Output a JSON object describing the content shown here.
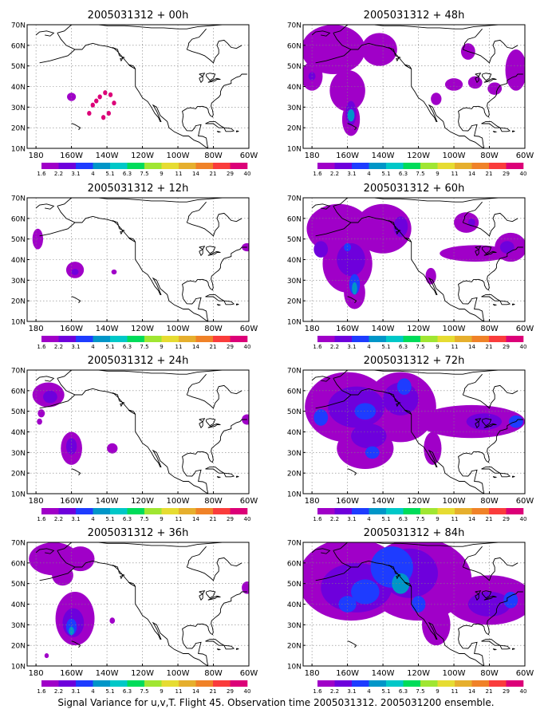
{
  "caption": "Signal Variance for u,v,T. Flight 45. Observation time 2005031312. 2005031200 ensemble.",
  "colors": {
    "colorbar": [
      "#a000c8",
      "#6e00dc",
      "#1e3cff",
      "#0096c8",
      "#00c8c8",
      "#00dc5a",
      "#a0e632",
      "#e6dc32",
      "#e6af2d",
      "#f08228",
      "#fa3c3c",
      "#dc0078"
    ],
    "background": "#ffffff",
    "coastline": "#000000",
    "grid": "#808080"
  },
  "chart_data": [
    {
      "type": "heatmap",
      "title": "2005031312 + 00h",
      "xlabel": "",
      "ylabel": "",
      "x_ticks": [
        "180",
        "160W",
        "140W",
        "120W",
        "100W",
        "80W",
        "60W"
      ],
      "y_ticks": [
        "10N",
        "20N",
        "30N",
        "40N",
        "50N",
        "60N",
        "70N"
      ],
      "x_range": [
        -185,
        -60
      ],
      "y_range": [
        10,
        70
      ],
      "grid": true,
      "colorbar": {
        "labels": [
          "1.6",
          "2.2",
          "3.1",
          "4",
          "5.1",
          "6.3",
          "7.5",
          "9",
          "11",
          "14",
          "21",
          "29",
          "40"
        ]
      },
      "blobs": [
        {
          "lon": -146,
          "lat": 33,
          "rx": 1.2,
          "ry": 1.2,
          "level": 11
        },
        {
          "lon": -150,
          "lat": 27,
          "rx": 1.2,
          "ry": 1.2,
          "level": 11
        },
        {
          "lon": -148,
          "lat": 31,
          "rx": 1.2,
          "ry": 1.2,
          "level": 11
        },
        {
          "lon": -144,
          "lat": 35,
          "rx": 1.2,
          "ry": 1.2,
          "level": 11
        },
        {
          "lon": -141,
          "lat": 37,
          "rx": 1.2,
          "ry": 1.2,
          "level": 11
        },
        {
          "lon": -138,
          "lat": 36,
          "rx": 1.2,
          "ry": 1.2,
          "level": 11
        },
        {
          "lon": -136,
          "lat": 32,
          "rx": 1.2,
          "ry": 1.2,
          "level": 11
        },
        {
          "lon": -139,
          "lat": 27,
          "rx": 1.2,
          "ry": 1.2,
          "level": 11
        },
        {
          "lon": -142,
          "lat": 25,
          "rx": 1.2,
          "ry": 1.2,
          "level": 11
        },
        {
          "lon": -160,
          "lat": 35,
          "rx": 2.5,
          "ry": 2,
          "level": 0
        }
      ]
    },
    {
      "type": "heatmap",
      "title": "2005031312 + 12h",
      "xlabel": "",
      "ylabel": "",
      "x_ticks": [
        "180",
        "160W",
        "140W",
        "120W",
        "100W",
        "80W",
        "60W"
      ],
      "y_ticks": [
        "10N",
        "20N",
        "30N",
        "40N",
        "50N",
        "60N",
        "70N"
      ],
      "x_range": [
        -185,
        -60
      ],
      "y_range": [
        10,
        70
      ],
      "grid": true,
      "colorbar": {
        "labels": [
          "1.6",
          "2.2",
          "3.1",
          "4",
          "5.1",
          "6.3",
          "7.5",
          "9",
          "11",
          "14",
          "21",
          "29",
          "40"
        ]
      },
      "blobs": [
        {
          "lon": -179,
          "lat": 50,
          "rx": 3,
          "ry": 5,
          "level": 0
        },
        {
          "lon": -158,
          "lat": 35,
          "rx": 5,
          "ry": 4,
          "level": 0
        },
        {
          "lon": -158,
          "lat": 34,
          "rx": 2,
          "ry": 1.5,
          "level": 1
        },
        {
          "lon": -136,
          "lat": 34,
          "rx": 1.5,
          "ry": 1.2,
          "level": 0
        },
        {
          "lon": -61,
          "lat": 46,
          "rx": 3,
          "ry": 2,
          "level": 0
        }
      ]
    },
    {
      "type": "heatmap",
      "title": "2005031312 + 24h",
      "xlabel": "",
      "ylabel": "",
      "x_ticks": [
        "180",
        "160W",
        "140W",
        "120W",
        "100W",
        "80W",
        "60W"
      ],
      "y_ticks": [
        "10N",
        "20N",
        "30N",
        "40N",
        "50N",
        "60N",
        "70N"
      ],
      "x_range": [
        -185,
        -60
      ],
      "y_range": [
        10,
        70
      ],
      "grid": true,
      "colorbar": {
        "labels": [
          "1.6",
          "2.2",
          "3.1",
          "4",
          "5.1",
          "6.3",
          "7.5",
          "9",
          "11",
          "14",
          "21",
          "29",
          "40"
        ]
      },
      "blobs": [
        {
          "lon": -173,
          "lat": 58,
          "rx": 9,
          "ry": 6,
          "level": 0
        },
        {
          "lon": -172,
          "lat": 57,
          "rx": 4,
          "ry": 3,
          "level": 1
        },
        {
          "lon": -177,
          "lat": 49,
          "rx": 2,
          "ry": 2,
          "level": 0
        },
        {
          "lon": -178,
          "lat": 45,
          "rx": 1.5,
          "ry": 1.5,
          "level": 0
        },
        {
          "lon": -160,
          "lat": 32,
          "rx": 6,
          "ry": 8,
          "level": 0
        },
        {
          "lon": -160,
          "lat": 33,
          "rx": 3,
          "ry": 4,
          "level": 1
        },
        {
          "lon": -137,
          "lat": 32,
          "rx": 3,
          "ry": 2.5,
          "level": 0
        },
        {
          "lon": -61,
          "lat": 46,
          "rx": 3,
          "ry": 2.5,
          "level": 0
        }
      ]
    },
    {
      "type": "heatmap",
      "title": "2005031312 + 36h",
      "xlabel": "",
      "ylabel": "",
      "x_ticks": [
        "180",
        "160W",
        "140W",
        "120W",
        "100W",
        "80W",
        "60W"
      ],
      "y_ticks": [
        "10N",
        "20N",
        "30N",
        "40N",
        "50N",
        "60N",
        "70N"
      ],
      "x_range": [
        -185,
        -60
      ],
      "y_range": [
        10,
        70
      ],
      "grid": true,
      "colorbar": {
        "labels": [
          "1.6",
          "2.2",
          "3.1",
          "4",
          "5.1",
          "6.3",
          "7.5",
          "9",
          "11",
          "14",
          "21",
          "29",
          "40"
        ]
      },
      "blobs": [
        {
          "lon": -170,
          "lat": 62,
          "rx": 14,
          "ry": 8,
          "level": 0
        },
        {
          "lon": -155,
          "lat": 62,
          "rx": 8,
          "ry": 6,
          "level": 0
        },
        {
          "lon": -165,
          "lat": 54,
          "rx": 6,
          "ry": 5,
          "level": 0
        },
        {
          "lon": -158,
          "lat": 33,
          "rx": 11,
          "ry": 13,
          "level": 0
        },
        {
          "lon": -159,
          "lat": 31,
          "rx": 6,
          "ry": 7,
          "level": 1
        },
        {
          "lon": -160,
          "lat": 29,
          "rx": 3,
          "ry": 4,
          "level": 2
        },
        {
          "lon": -160,
          "lat": 27,
          "rx": 1.5,
          "ry": 2,
          "level": 3
        },
        {
          "lon": -174,
          "lat": 15,
          "rx": 1.2,
          "ry": 1.2,
          "level": 0
        },
        {
          "lon": -137,
          "lat": 32,
          "rx": 1.5,
          "ry": 1.5,
          "level": 0
        },
        {
          "lon": -61,
          "lat": 48,
          "rx": 3,
          "ry": 3,
          "level": 0
        }
      ]
    },
    {
      "type": "heatmap",
      "title": "2005031312 + 48h",
      "xlabel": "",
      "ylabel": "",
      "x_ticks": [
        "180",
        "160W",
        "140W",
        "120W",
        "100W",
        "80W",
        "60W"
      ],
      "y_ticks": [
        "10N",
        "20N",
        "30N",
        "40N",
        "50N",
        "60N",
        "70N"
      ],
      "x_range": [
        -185,
        -60
      ],
      "y_range": [
        10,
        70
      ],
      "grid": true,
      "colorbar": {
        "labels": [
          "1.6",
          "2.2",
          "3.1",
          "4",
          "5.1",
          "6.3",
          "7.5",
          "9",
          "11",
          "14",
          "21",
          "29",
          "40"
        ]
      },
      "blobs": [
        {
          "lon": -168,
          "lat": 58,
          "rx": 18,
          "ry": 12,
          "level": 0
        },
        {
          "lon": -142,
          "lat": 58,
          "rx": 10,
          "ry": 8,
          "level": 0
        },
        {
          "lon": -180,
          "lat": 45,
          "rx": 6,
          "ry": 7,
          "level": 0
        },
        {
          "lon": -160,
          "lat": 38,
          "rx": 10,
          "ry": 10,
          "level": 0
        },
        {
          "lon": -158,
          "lat": 24,
          "rx": 5,
          "ry": 8,
          "level": 0
        },
        {
          "lon": -158,
          "lat": 27,
          "rx": 3,
          "ry": 6,
          "level": 1
        },
        {
          "lon": -158,
          "lat": 26,
          "rx": 2,
          "ry": 3,
          "level": 3
        },
        {
          "lon": -180,
          "lat": 45,
          "rx": 2,
          "ry": 2,
          "level": 1
        },
        {
          "lon": -92,
          "lat": 57,
          "rx": 4,
          "ry": 4,
          "level": 0
        },
        {
          "lon": -100,
          "lat": 41,
          "rx": 5,
          "ry": 3,
          "level": 0
        },
        {
          "lon": -88,
          "lat": 42,
          "rx": 4,
          "ry": 3,
          "level": 0
        },
        {
          "lon": -77,
          "lat": 39,
          "rx": 4,
          "ry": 3,
          "level": 0
        },
        {
          "lon": -65,
          "lat": 48,
          "rx": 6,
          "ry": 10,
          "level": 0
        },
        {
          "lon": -110,
          "lat": 34,
          "rx": 3,
          "ry": 3,
          "level": 0
        }
      ]
    },
    {
      "type": "heatmap",
      "title": "2005031312 + 60h",
      "xlabel": "",
      "ylabel": "",
      "x_ticks": [
        "180",
        "160W",
        "140W",
        "120W",
        "100W",
        "80W",
        "60W"
      ],
      "y_ticks": [
        "10N",
        "20N",
        "30N",
        "40N",
        "50N",
        "60N",
        "70N"
      ],
      "x_range": [
        -185,
        -60
      ],
      "y_range": [
        10,
        70
      ],
      "grid": true,
      "colorbar": {
        "labels": [
          "1.6",
          "2.2",
          "3.1",
          "4",
          "5.1",
          "6.3",
          "7.5",
          "9",
          "11",
          "14",
          "21",
          "29",
          "40"
        ]
      },
      "blobs": [
        {
          "lon": -165,
          "lat": 55,
          "rx": 18,
          "ry": 12,
          "level": 0
        },
        {
          "lon": -140,
          "lat": 55,
          "rx": 16,
          "ry": 12,
          "level": 0
        },
        {
          "lon": -160,
          "lat": 38,
          "rx": 14,
          "ry": 14,
          "level": 0
        },
        {
          "lon": -156,
          "lat": 24,
          "rx": 6,
          "ry": 8,
          "level": 0
        },
        {
          "lon": -158,
          "lat": 40,
          "rx": 8,
          "ry": 8,
          "level": 1
        },
        {
          "lon": -156,
          "lat": 28,
          "rx": 3,
          "ry": 5,
          "level": 2
        },
        {
          "lon": -156,
          "lat": 26,
          "rx": 1.5,
          "ry": 3,
          "level": 3
        },
        {
          "lon": -175,
          "lat": 45,
          "rx": 4,
          "ry": 4,
          "level": 1
        },
        {
          "lon": -130,
          "lat": 56,
          "rx": 4,
          "ry": 5,
          "level": 1
        },
        {
          "lon": -160,
          "lat": 46,
          "rx": 2,
          "ry": 2,
          "level": 2
        },
        {
          "lon": -93,
          "lat": 58,
          "rx": 7,
          "ry": 5,
          "level": 0
        },
        {
          "lon": -90,
          "lat": 58,
          "rx": 2,
          "ry": 2,
          "level": 1
        },
        {
          "lon": -88,
          "lat": 43,
          "rx": 20,
          "ry": 4,
          "level": 0
        },
        {
          "lon": -68,
          "lat": 46,
          "rx": 9,
          "ry": 7,
          "level": 0
        },
        {
          "lon": -70,
          "lat": 46,
          "rx": 4,
          "ry": 3,
          "level": 1
        },
        {
          "lon": -113,
          "lat": 32,
          "rx": 3,
          "ry": 4,
          "level": 0
        }
      ]
    },
    {
      "type": "heatmap",
      "title": "2005031312 + 72h",
      "xlabel": "",
      "ylabel": "",
      "x_ticks": [
        "180",
        "160W",
        "140W",
        "120W",
        "100W",
        "80W",
        "60W"
      ],
      "y_ticks": [
        "10N",
        "20N",
        "30N",
        "40N",
        "50N",
        "60N",
        "70N"
      ],
      "x_range": [
        -185,
        -60
      ],
      "y_range": [
        10,
        70
      ],
      "grid": true,
      "colorbar": {
        "labels": [
          "1.6",
          "2.2",
          "3.1",
          "4",
          "5.1",
          "6.3",
          "7.5",
          "9",
          "11",
          "14",
          "21",
          "29",
          "40"
        ]
      },
      "blobs": [
        {
          "lon": -160,
          "lat": 52,
          "rx": 24,
          "ry": 17,
          "level": 0
        },
        {
          "lon": -130,
          "lat": 52,
          "rx": 20,
          "ry": 17,
          "level": 0
        },
        {
          "lon": -150,
          "lat": 32,
          "rx": 16,
          "ry": 10,
          "level": 0
        },
        {
          "lon": -90,
          "lat": 45,
          "rx": 30,
          "ry": 8,
          "level": 0
        },
        {
          "lon": -112,
          "lat": 32,
          "rx": 5,
          "ry": 8,
          "level": 0
        },
        {
          "lon": -155,
          "lat": 52,
          "rx": 16,
          "ry": 10,
          "level": 1
        },
        {
          "lon": -130,
          "lat": 56,
          "rx": 10,
          "ry": 8,
          "level": 1
        },
        {
          "lon": -148,
          "lat": 38,
          "rx": 10,
          "ry": 6,
          "level": 1
        },
        {
          "lon": -175,
          "lat": 47,
          "rx": 4,
          "ry": 4,
          "level": 2
        },
        {
          "lon": -150,
          "lat": 50,
          "rx": 6,
          "ry": 4,
          "level": 2
        },
        {
          "lon": -128,
          "lat": 62,
          "rx": 4,
          "ry": 4,
          "level": 2
        },
        {
          "lon": -146,
          "lat": 30,
          "rx": 4,
          "ry": 3,
          "level": 2
        },
        {
          "lon": -83,
          "lat": 45,
          "rx": 10,
          "ry": 4,
          "level": 1
        },
        {
          "lon": -65,
          "lat": 45,
          "rx": 4,
          "ry": 3,
          "level": 2
        }
      ]
    },
    {
      "type": "heatmap",
      "title": "2005031312 + 84h",
      "xlabel": "",
      "ylabel": "",
      "x_ticks": [
        "180",
        "160W",
        "140W",
        "120W",
        "100W",
        "80W",
        "60W"
      ],
      "y_ticks": [
        "10N",
        "20N",
        "30N",
        "40N",
        "50N",
        "60N",
        "70N"
      ],
      "x_range": [
        -185,
        -60
      ],
      "y_range": [
        10,
        70
      ],
      "grid": true,
      "colorbar": {
        "labels": [
          "1.6",
          "2.2",
          "3.1",
          "4",
          "5.1",
          "6.3",
          "7.5",
          "9",
          "11",
          "14",
          "21",
          "29",
          "40"
        ]
      },
      "blobs": [
        {
          "lon": -158,
          "lat": 52,
          "rx": 30,
          "ry": 20,
          "level": 0
        },
        {
          "lon": -120,
          "lat": 52,
          "rx": 30,
          "ry": 20,
          "level": 0
        },
        {
          "lon": -80,
          "lat": 42,
          "rx": 25,
          "ry": 12,
          "level": 0
        },
        {
          "lon": -110,
          "lat": 30,
          "rx": 8,
          "ry": 10,
          "level": 0
        },
        {
          "lon": -155,
          "lat": 48,
          "rx": 20,
          "ry": 12,
          "level": 1
        },
        {
          "lon": -125,
          "lat": 55,
          "rx": 16,
          "ry": 12,
          "level": 1
        },
        {
          "lon": -80,
          "lat": 40,
          "rx": 12,
          "ry": 6,
          "level": 1
        },
        {
          "lon": -135,
          "lat": 58,
          "rx": 12,
          "ry": 10,
          "level": 2
        },
        {
          "lon": -150,
          "lat": 46,
          "rx": 8,
          "ry": 6,
          "level": 2
        },
        {
          "lon": -130,
          "lat": 50,
          "rx": 5,
          "ry": 5,
          "level": 3
        },
        {
          "lon": -120,
          "lat": 40,
          "rx": 4,
          "ry": 4,
          "level": 2
        },
        {
          "lon": -68,
          "lat": 42,
          "rx": 4,
          "ry": 4,
          "level": 2
        },
        {
          "lon": -160,
          "lat": 40,
          "rx": 5,
          "ry": 4,
          "level": 2
        }
      ]
    }
  ]
}
